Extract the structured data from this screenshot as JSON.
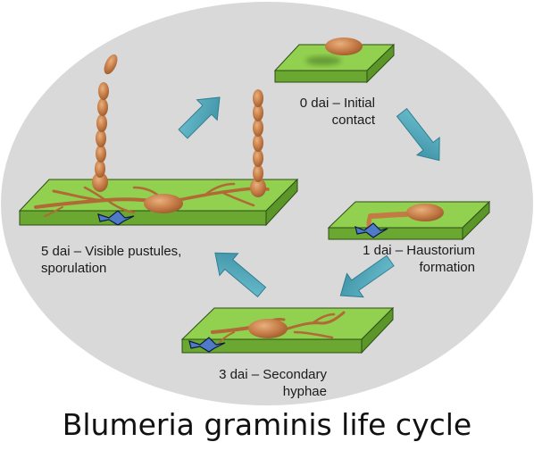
{
  "title": "Blumeria graminis life cycle",
  "stages": [
    {
      "day": "0 dai",
      "label_lines": [
        "0 dai – Initial",
        "contact"
      ]
    },
    {
      "day": "1 dai",
      "label_lines": [
        "1 dai – Haustorium",
        "formation"
      ]
    },
    {
      "day": "3 dai",
      "label_lines": [
        "3 dai – Secondary",
        "hyphae"
      ]
    },
    {
      "day": "5 dai",
      "label_lines": [
        "5 dai – Visible pustules,",
        "sporulation"
      ]
    }
  ],
  "colors": {
    "ellipse_fill": "#d9d9d9",
    "leaf_top": "#92d050",
    "leaf_side": "#6aa832",
    "fungus": "#c47a45",
    "arrow": "#4aa3b5",
    "haustorium": "#4f7ac7"
  }
}
